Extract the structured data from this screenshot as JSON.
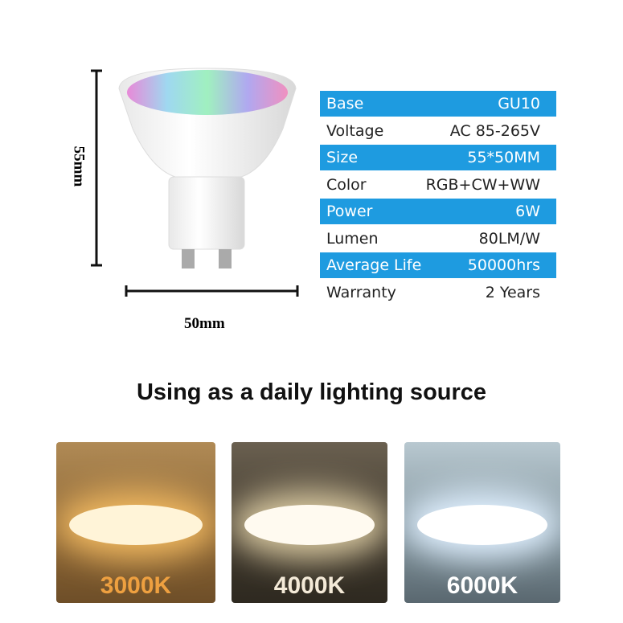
{
  "dimensions": {
    "height": "55mm",
    "width": "50mm"
  },
  "specs": {
    "rows": [
      [
        "Base",
        "GU10"
      ],
      [
        "Voltage",
        "AC 85-265V"
      ],
      [
        "Size",
        "55*50MM"
      ],
      [
        "Color",
        "RGB+CW+WW"
      ],
      [
        "Power",
        "6W"
      ],
      [
        "Lumen",
        "80LM/W"
      ],
      [
        "Average Life",
        "50000hrs"
      ],
      [
        "Warranty",
        "2 Years"
      ]
    ]
  },
  "heading": "Using as a daily lighting source",
  "swatches": [
    "3000K",
    "4000K",
    "6000K"
  ]
}
